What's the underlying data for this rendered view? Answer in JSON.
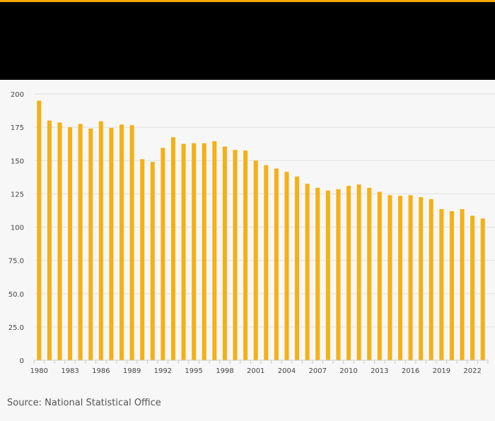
{
  "source": "Source: National Statistical Office",
  "colors": {
    "accent": "#f2a900",
    "bar": "#f5b014",
    "header": "#000000",
    "grid": "#e2e2e2",
    "axis": "#cccccc"
  },
  "chart_data": {
    "type": "bar",
    "title": "",
    "xlabel": "",
    "ylabel": "",
    "ylim": [
      0,
      200
    ],
    "yticks": [
      "0",
      "25.0",
      "50.0",
      "75.0",
      "100",
      "125",
      "150",
      "175",
      "200"
    ],
    "ytick_values": [
      0,
      25,
      50,
      75,
      100,
      125,
      150,
      175,
      200
    ],
    "xtick_labels": [
      "1980",
      "1983",
      "1986",
      "1989",
      "1992",
      "1995",
      "1998",
      "2001",
      "2004",
      "2007",
      "2010",
      "2013",
      "2016",
      "2019",
      "2022"
    ],
    "grid": true,
    "legend": "none",
    "categories": [
      "1980",
      "1981",
      "1982",
      "1983",
      "1984",
      "1985",
      "1986",
      "1987",
      "1988",
      "1989",
      "1990",
      "1991",
      "1992",
      "1993",
      "1994",
      "1995",
      "1996",
      "1997",
      "1998",
      "1999",
      "2000",
      "2001",
      "2002",
      "2003",
      "2004",
      "2005",
      "2006",
      "2007",
      "2008",
      "2009",
      "2010",
      "2011",
      "2012",
      "2013",
      "2014",
      "2015",
      "2016",
      "2017",
      "2018",
      "2019",
      "2020",
      "2021",
      "2022",
      "2023"
    ],
    "values": [
      195,
      180,
      178.5,
      175,
      177.5,
      174,
      179.5,
      174.5,
      177,
      176.5,
      151,
      149,
      159.5,
      167.5,
      162.5,
      163,
      163,
      164.5,
      160.5,
      158,
      157.5,
      150,
      146.5,
      144,
      141.5,
      138,
      132.5,
      129.5,
      127.5,
      128.5,
      131,
      132,
      129.5,
      126.5,
      124,
      123.5,
      124,
      122.5,
      121,
      113.5,
      112,
      113.5,
      108.5,
      106.5
    ]
  }
}
